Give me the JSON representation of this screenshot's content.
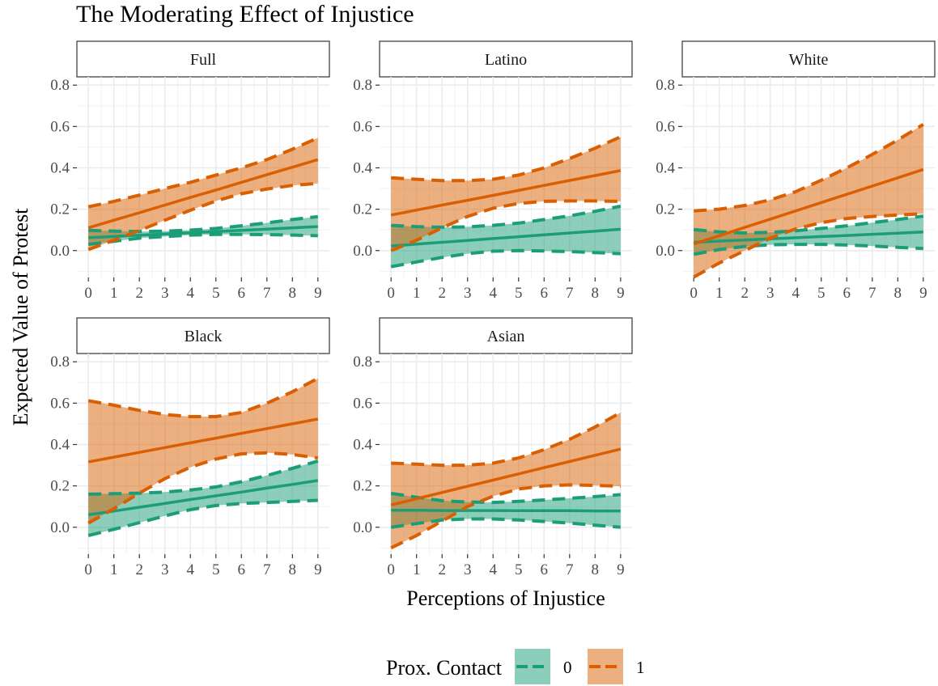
{
  "chart_data": {
    "type": "line",
    "title": "The Moderating Effect of Injustice",
    "xlabel": "Perceptions of Injustice",
    "ylabel": "Expected Value of Protest",
    "xlim": [
      -0.45,
      9.45
    ],
    "ylim": [
      -0.13,
      0.84
    ],
    "x_ticks": [
      0,
      1,
      2,
      3,
      4,
      5,
      6,
      7,
      8,
      9
    ],
    "y_ticks": [
      0.0,
      0.2,
      0.4,
      0.6,
      0.8
    ],
    "y_tick_labels": [
      "0.0",
      "0.2",
      "0.4",
      "0.6",
      "0.8"
    ],
    "grid": true,
    "legend": {
      "title": "Prox. Contact",
      "position": "bottom",
      "entries": [
        {
          "label": "0",
          "color": "#1B9E77"
        },
        {
          "label": "1",
          "color": "#D95F02"
        }
      ]
    },
    "x": [
      0,
      1,
      2,
      3,
      4,
      5,
      6,
      7,
      8,
      9
    ],
    "panels": [
      {
        "name": "Full",
        "series": [
          {
            "group": "0",
            "color": "#1B9E77",
            "mean": [
              0.062,
              0.068,
              0.074,
              0.08,
              0.086,
              0.092,
              0.098,
              0.104,
              0.11,
              0.116
            ],
            "lower": [
              0.03,
              0.045,
              0.06,
              0.068,
              0.075,
              0.078,
              0.078,
              0.077,
              0.075,
              0.072
            ],
            "upper": [
              0.098,
              0.094,
              0.092,
              0.094,
              0.099,
              0.107,
              0.12,
              0.134,
              0.15,
              0.164
            ]
          },
          {
            "group": "1",
            "color": "#D95F02",
            "mean": [
              0.11,
              0.147,
              0.183,
              0.22,
              0.257,
              0.293,
              0.33,
              0.367,
              0.403,
              0.44
            ],
            "lower": [
              0.005,
              0.05,
              0.097,
              0.147,
              0.195,
              0.24,
              0.275,
              0.298,
              0.315,
              0.325
            ],
            "upper": [
              0.212,
              0.238,
              0.268,
              0.3,
              0.33,
              0.365,
              0.4,
              0.44,
              0.49,
              0.545
            ]
          }
        ]
      },
      {
        "name": "Latino",
        "series": [
          {
            "group": "0",
            "color": "#1B9E77",
            "mean": [
              0.022,
              0.031,
              0.04,
              0.049,
              0.058,
              0.067,
              0.076,
              0.085,
              0.094,
              0.103
            ],
            "lower": [
              -0.078,
              -0.055,
              -0.033,
              -0.015,
              -0.003,
              0.0,
              -0.002,
              -0.005,
              -0.01,
              -0.015
            ],
            "upper": [
              0.122,
              0.116,
              0.113,
              0.115,
              0.122,
              0.133,
              0.15,
              0.168,
              0.19,
              0.215
            ]
          },
          {
            "group": "1",
            "color": "#D95F02",
            "mean": [
              0.172,
              0.196,
              0.22,
              0.243,
              0.267,
              0.291,
              0.315,
              0.339,
              0.363,
              0.387
            ],
            "lower": [
              0.0,
              0.05,
              0.11,
              0.165,
              0.205,
              0.228,
              0.238,
              0.24,
              0.24,
              0.238
            ],
            "upper": [
              0.352,
              0.345,
              0.338,
              0.338,
              0.345,
              0.365,
              0.4,
              0.445,
              0.495,
              0.55
            ]
          }
        ]
      },
      {
        "name": "White",
        "series": [
          {
            "group": "0",
            "color": "#1B9E77",
            "mean": [
              0.04,
              0.046,
              0.051,
              0.057,
              0.062,
              0.068,
              0.073,
              0.079,
              0.084,
              0.09
            ],
            "lower": [
              -0.018,
              0.005,
              0.02,
              0.028,
              0.03,
              0.03,
              0.027,
              0.022,
              0.016,
              0.01
            ],
            "upper": [
              0.102,
              0.09,
              0.085,
              0.088,
              0.096,
              0.107,
              0.12,
              0.135,
              0.15,
              0.167
            ]
          },
          {
            "group": "1",
            "color": "#D95F02",
            "mean": [
              0.032,
              0.072,
              0.112,
              0.152,
              0.192,
              0.232,
              0.272,
              0.312,
              0.352,
              0.392
            ],
            "lower": [
              -0.128,
              -0.06,
              0.0,
              0.06,
              0.105,
              0.135,
              0.155,
              0.165,
              0.172,
              0.178
            ],
            "upper": [
              0.192,
              0.2,
              0.218,
              0.245,
              0.285,
              0.34,
              0.4,
              0.465,
              0.535,
              0.61
            ]
          }
        ]
      },
      {
        "name": "Black",
        "series": [
          {
            "group": "0",
            "color": "#1B9E77",
            "mean": [
              0.06,
              0.078,
              0.097,
              0.115,
              0.134,
              0.152,
              0.17,
              0.189,
              0.207,
              0.226
            ],
            "lower": [
              -0.04,
              -0.01,
              0.022,
              0.055,
              0.085,
              0.105,
              0.115,
              0.12,
              0.125,
              0.13
            ],
            "upper": [
              0.16,
              0.162,
              0.165,
              0.17,
              0.18,
              0.195,
              0.22,
              0.25,
              0.285,
              0.32
            ]
          },
          {
            "group": "1",
            "color": "#D95F02",
            "mean": [
              0.316,
              0.339,
              0.362,
              0.385,
              0.408,
              0.431,
              0.454,
              0.477,
              0.5,
              0.523
            ],
            "lower": [
              0.02,
              0.09,
              0.165,
              0.235,
              0.29,
              0.33,
              0.355,
              0.36,
              0.352,
              0.335
            ],
            "upper": [
              0.612,
              0.59,
              0.565,
              0.545,
              0.535,
              0.535,
              0.555,
              0.6,
              0.655,
              0.72
            ]
          }
        ]
      },
      {
        "name": "Asian",
        "series": [
          {
            "group": "0",
            "color": "#1B9E77",
            "mean": [
              0.082,
              0.082,
              0.081,
              0.081,
              0.081,
              0.08,
              0.08,
              0.08,
              0.079,
              0.079
            ],
            "lower": [
              0.0,
              0.018,
              0.035,
              0.04,
              0.04,
              0.035,
              0.028,
              0.02,
              0.01,
              0.0
            ],
            "upper": [
              0.164,
              0.145,
              0.128,
              0.122,
              0.12,
              0.125,
              0.132,
              0.14,
              0.148,
              0.158
            ]
          },
          {
            "group": "1",
            "color": "#D95F02",
            "mean": [
              0.108,
              0.138,
              0.168,
              0.198,
              0.228,
              0.258,
              0.288,
              0.318,
              0.348,
              0.378
            ],
            "lower": [
              -0.1,
              -0.04,
              0.03,
              0.1,
              0.15,
              0.185,
              0.2,
              0.205,
              0.202,
              0.198
            ],
            "upper": [
              0.31,
              0.305,
              0.3,
              0.3,
              0.31,
              0.335,
              0.375,
              0.425,
              0.485,
              0.555
            ]
          }
        ]
      }
    ]
  }
}
